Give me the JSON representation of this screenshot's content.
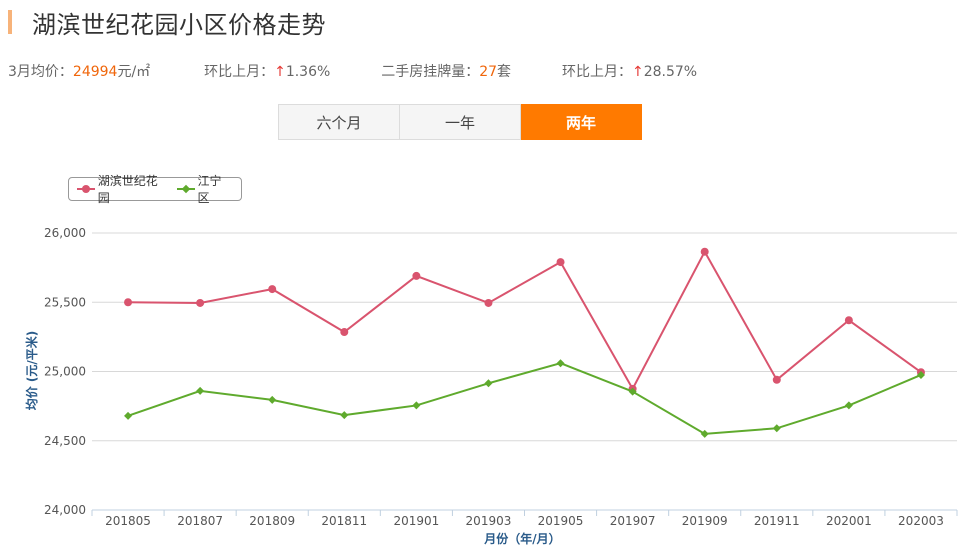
{
  "header": {
    "title": "湖滨世纪花园小区价格走势"
  },
  "stats": {
    "avg_label": "3月均价：",
    "avg_value": "24994",
    "avg_unit": "元/㎡",
    "mom1_label": "环比上月：",
    "mom1_arrow": "↑",
    "mom1_value": "1.36%",
    "listing_label": "二手房挂牌量：",
    "listing_value": "27",
    "listing_unit": "套",
    "mom2_label": "环比上月：",
    "mom2_arrow": "↑",
    "mom2_value": "28.57%"
  },
  "tabs": [
    {
      "label": "六个月",
      "active": false
    },
    {
      "label": "一年",
      "active": false
    },
    {
      "label": "两年",
      "active": true
    }
  ],
  "colors": {
    "series1": "#d9546e",
    "series2": "#5faa2d",
    "accent": "#ff7a00"
  },
  "chart_data": {
    "type": "line",
    "title": "",
    "xlabel": "月份（年/月）",
    "ylabel": "均价 (元/平米)",
    "ylim": [
      24000,
      26000
    ],
    "yticks": [
      24000,
      24500,
      25000,
      25500,
      26000
    ],
    "ytick_labels": [
      "24,000",
      "24,500",
      "25,000",
      "25,500",
      "26,000"
    ],
    "legend_position": "top-left",
    "grid": true,
    "categories": [
      "201805",
      "201807",
      "201809",
      "201811",
      "201901",
      "201903",
      "201905",
      "201907",
      "201909",
      "201911",
      "202001",
      "202003"
    ],
    "series": [
      {
        "name": "湖滨世纪花园",
        "marker": "circle",
        "values": [
          25500,
          25495,
          25595,
          25285,
          25690,
          25495,
          25790,
          24875,
          25865,
          24940,
          25370,
          24995
        ]
      },
      {
        "name": "江宁区",
        "marker": "diamond",
        "values": [
          24680,
          24860,
          24795,
          24685,
          24755,
          24915,
          25060,
          24855,
          24550,
          24590,
          24755,
          24975
        ]
      }
    ]
  }
}
